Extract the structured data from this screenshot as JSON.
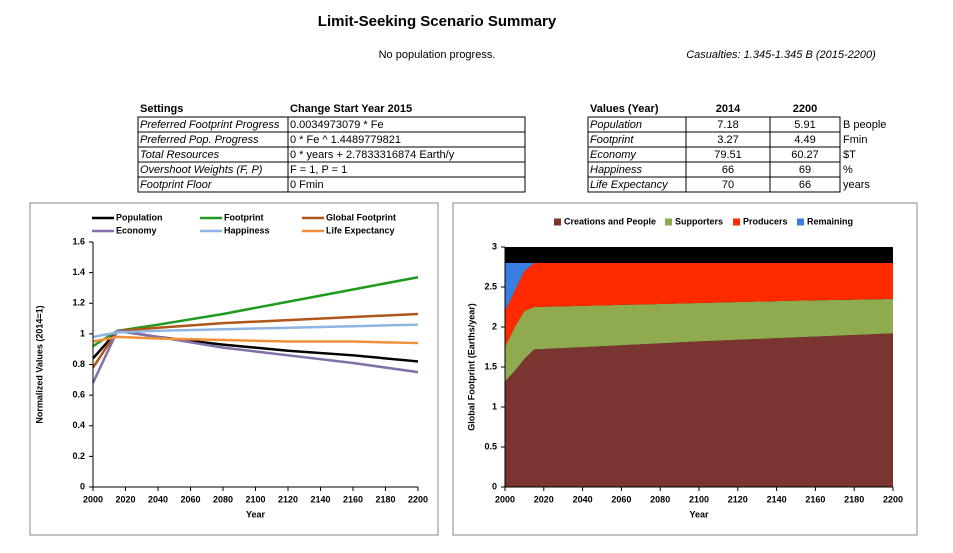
{
  "header": {
    "title": "Limit-Seeking Scenario Summary",
    "note": "No population progress.",
    "casualties": "Casualties: 1.345-1.345 B (2015-2200)"
  },
  "settings_table": {
    "header": [
      "Settings",
      "Change Start Year 2015"
    ],
    "rows": [
      [
        "Preferred Footprint Progress",
        "0.0034973079 * Fe"
      ],
      [
        "Preferred Pop. Progress",
        "0 * Fe ^ 1.4489779821"
      ],
      [
        "Total Resources",
        "0 * years + 2.7833316874 Earth/y"
      ],
      [
        "Overshoot Weights (F, P)",
        "F = 1, P = 1"
      ],
      [
        "Footprint Floor",
        "0 Fmin"
      ]
    ]
  },
  "values_table": {
    "header": [
      "Values (Year)",
      "2014",
      "2200"
    ],
    "rows": [
      [
        "Population",
        "7.18",
        "5.91",
        "B people"
      ],
      [
        "Footprint",
        "3.27",
        "4.49",
        "Fmin"
      ],
      [
        "Economy",
        "79.51",
        "60.27",
        "$T"
      ],
      [
        "Happiness",
        "66",
        "69",
        "%"
      ],
      [
        "Life Expectancy",
        "70",
        "66",
        "years"
      ]
    ]
  },
  "chart_data": [
    {
      "type": "line",
      "x_label": "Year",
      "y_label": "Normalized Values (2014=1)",
      "x": [
        2000,
        2015,
        2040,
        2080,
        2120,
        2160,
        2200
      ],
      "xlim": [
        2000,
        2200
      ],
      "xticks": [
        2000,
        2020,
        2040,
        2060,
        2080,
        2100,
        2120,
        2140,
        2160,
        2180,
        2200
      ],
      "ylim": [
        0,
        1.6
      ],
      "yticks": [
        0,
        0.2,
        0.4,
        0.6,
        0.8,
        1,
        1.2,
        1.4,
        1.6
      ],
      "series": [
        {
          "name": "Population",
          "color": "#000000",
          "values": [
            0.84,
            1.02,
            0.98,
            0.93,
            0.89,
            0.86,
            0.82
          ]
        },
        {
          "name": "Footprint",
          "color": "#1f9a1f",
          "values": [
            0.92,
            1.02,
            1.06,
            1.13,
            1.21,
            1.29,
            1.37
          ]
        },
        {
          "name": "Global Footprint",
          "color": "#b0561a",
          "values": [
            0.78,
            1.02,
            1.04,
            1.07,
            1.09,
            1.11,
            1.13
          ]
        },
        {
          "name": "Economy",
          "color": "#8470a8",
          "values": [
            0.68,
            1.02,
            0.98,
            0.91,
            0.86,
            0.81,
            0.75
          ]
        },
        {
          "name": "Happiness",
          "color": "#8db4e2",
          "values": [
            0.98,
            1.01,
            1.02,
            1.03,
            1.04,
            1.05,
            1.06
          ]
        },
        {
          "name": "Life Expectancy",
          "color": "#f0903a",
          "values": [
            0.95,
            0.98,
            0.97,
            0.96,
            0.95,
            0.95,
            0.94
          ]
        }
      ]
    },
    {
      "type": "area",
      "stacked": true,
      "x_label": "Year",
      "y_label": "Global Footprint (Earths/year)",
      "x": [
        2000,
        2005,
        2010,
        2015,
        2050,
        2100,
        2150,
        2200
      ],
      "xlim": [
        2000,
        2200
      ],
      "xticks": [
        2000,
        2020,
        2040,
        2060,
        2080,
        2100,
        2120,
        2140,
        2160,
        2180,
        2200
      ],
      "ylim": [
        0,
        3
      ],
      "yticks": [
        0,
        0.5,
        1,
        1.5,
        2,
        2.5,
        3
      ],
      "series": [
        {
          "name": "Creations and People",
          "color": "#7a3530",
          "values": [
            1.32,
            1.45,
            1.6,
            1.72,
            1.76,
            1.82,
            1.87,
            1.92
          ]
        },
        {
          "name": "Supporters",
          "color": "#8faa4f",
          "values": [
            0.43,
            0.55,
            0.6,
            0.53,
            0.51,
            0.48,
            0.46,
            0.43
          ]
        },
        {
          "name": "Producers",
          "color": "#ff2a00",
          "values": [
            0.45,
            0.45,
            0.5,
            0.55,
            0.53,
            0.5,
            0.47,
            0.45
          ]
        },
        {
          "name": "Remaining",
          "color": "#3a7fe0",
          "values": [
            0.6,
            0.35,
            0.1,
            0,
            0,
            0,
            0,
            0
          ]
        }
      ]
    }
  ]
}
